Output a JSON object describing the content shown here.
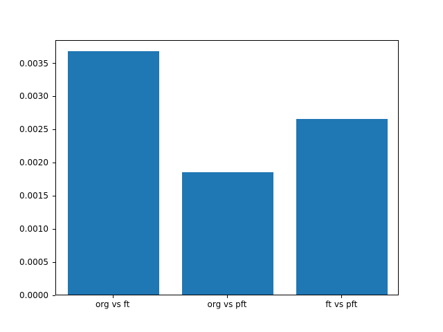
{
  "chart_data": {
    "type": "bar",
    "categories": [
      "org vs ft",
      "org vs pft",
      "ft vs pft"
    ],
    "values": [
      0.00367,
      0.00185,
      0.00265
    ],
    "title": "",
    "xlabel": "",
    "ylabel": "",
    "ylim": [
      0,
      0.00385
    ],
    "yticks": [
      0.0,
      0.0005,
      0.001,
      0.0015,
      0.002,
      0.0025,
      0.003,
      0.0035
    ],
    "ytick_labels": [
      "0.0000",
      "0.0005",
      "0.0010",
      "0.0015",
      "0.0020",
      "0.0025",
      "0.0030",
      "0.0035"
    ],
    "bar_color": "#1f77b4",
    "grid": false,
    "legend": false
  }
}
